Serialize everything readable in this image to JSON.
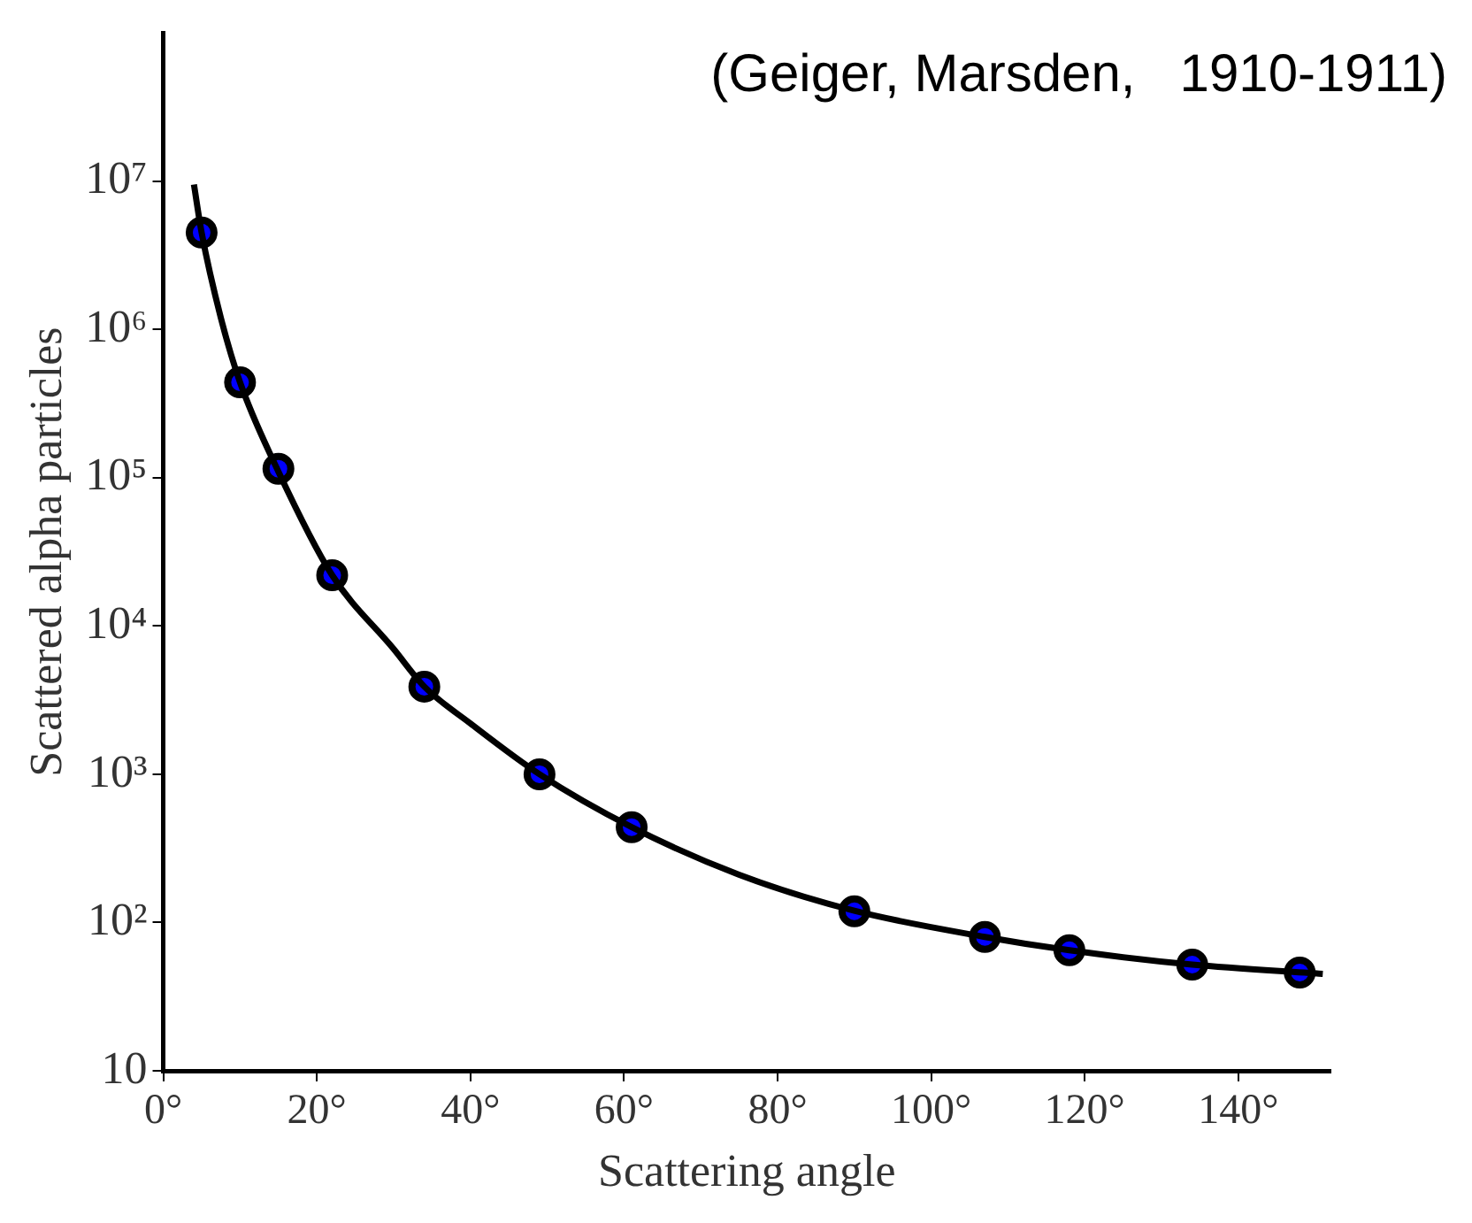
{
  "chart_data": {
    "type": "scatter",
    "xlabel": "Scattering angle",
    "ylabel": "Scattered alpha particles",
    "annotations": [
      "(Geiger, Marsden,   1910-1911)"
    ],
    "series": [
      {
        "type": "line",
        "color": "#000000",
        "marker": "none",
        "x": [
          4,
          5,
          7.5,
          10,
          15,
          22,
          30,
          34,
          40,
          49,
          61,
          75,
          90,
          107,
          118,
          134,
          151
        ],
        "values": [
          9500000,
          4500000,
          1200000,
          440000,
          110000,
          22000,
          7000,
          3900,
          2200,
          1000,
          440,
          210,
          120,
          80,
          65,
          52,
          45
        ]
      },
      {
        "type": "scatter",
        "color": "#0000ff",
        "marker": "circle",
        "x": [
          5,
          10,
          15,
          22,
          34,
          49,
          61,
          90,
          107,
          118,
          134,
          148
        ],
        "values": [
          4500000,
          440000,
          115000,
          22000,
          3900,
          1000,
          440,
          119,
          80,
          65,
          52,
          46
        ]
      }
    ],
    "log": "y",
    "grid": false,
    "legend": false,
    "xlim": [
      0,
      152
    ],
    "xticks": [
      {
        "value": 0,
        "label": "0°"
      },
      {
        "value": 20,
        "label": "20°"
      },
      {
        "value": 40,
        "label": "40°"
      },
      {
        "value": 60,
        "label": "60°"
      },
      {
        "value": 80,
        "label": "80°"
      },
      {
        "value": 100,
        "label": "100°"
      },
      {
        "value": 120,
        "label": "120°"
      },
      {
        "value": 140,
        "label": "140°"
      }
    ],
    "ylim": [
      10,
      100000000
    ],
    "yticks": [
      10,
      {
        "value": 100,
        "label": "10²"
      },
      {
        "value": 1000,
        "label": "10³"
      },
      {
        "value": 10000,
        "label": "10⁴"
      },
      {
        "value": 100000,
        "label": "10⁵"
      },
      {
        "value": 1000000,
        "label": "10⁶"
      },
      {
        "value": 10000000,
        "label": "10⁷"
      }
    ]
  }
}
